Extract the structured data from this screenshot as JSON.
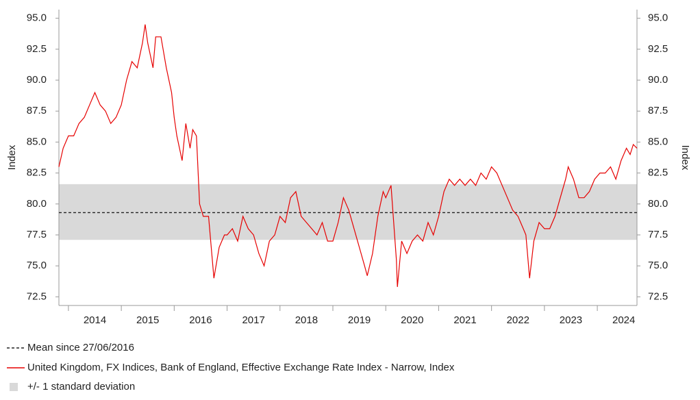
{
  "chart_data": {
    "type": "line",
    "y_label": "Index",
    "y2_label": "Index",
    "x": [
      2013.82,
      2013.9,
      2014.0,
      2014.1,
      2014.2,
      2014.3,
      2014.4,
      2014.5,
      2014.6,
      2014.7,
      2014.8,
      2014.9,
      2015.0,
      2015.1,
      2015.2,
      2015.3,
      2015.4,
      2015.45,
      2015.5,
      2015.6,
      2015.65,
      2015.75,
      2015.85,
      2015.95,
      2016.0,
      2016.05,
      2016.15,
      2016.22,
      2016.3,
      2016.35,
      2016.42,
      2016.48,
      2016.55,
      2016.65,
      2016.75,
      2016.85,
      2016.95,
      2017.0,
      2017.1,
      2017.2,
      2017.3,
      2017.4,
      2017.5,
      2017.6,
      2017.7,
      2017.8,
      2017.9,
      2018.0,
      2018.1,
      2018.2,
      2018.3,
      2018.4,
      2018.5,
      2018.6,
      2018.7,
      2018.8,
      2018.9,
      2019.0,
      2019.1,
      2019.2,
      2019.3,
      2019.4,
      2019.5,
      2019.6,
      2019.65,
      2019.75,
      2019.85,
      2019.95,
      2020.0,
      2020.1,
      2020.2,
      2020.22,
      2020.3,
      2020.4,
      2020.5,
      2020.6,
      2020.7,
      2020.8,
      2020.9,
      2021.0,
      2021.1,
      2021.2,
      2021.3,
      2021.4,
      2021.5,
      2021.6,
      2021.7,
      2021.8,
      2021.9,
      2022.0,
      2022.1,
      2022.2,
      2022.3,
      2022.4,
      2022.5,
      2022.6,
      2022.65,
      2022.72,
      2022.8,
      2022.9,
      2023.0,
      2023.1,
      2023.2,
      2023.3,
      2023.4,
      2023.45,
      2023.55,
      2023.65,
      2023.75,
      2023.85,
      2023.95,
      2024.05,
      2024.15,
      2024.25,
      2024.35,
      2024.45,
      2024.55,
      2024.62,
      2024.68,
      2024.75
    ],
    "series": [
      {
        "name": "United Kingdom, FX Indices, Bank of England, Effective Exchange Rate Index - Narrow, Index",
        "color": "#e60000",
        "values": [
          83.0,
          84.5,
          85.5,
          85.5,
          86.5,
          87.0,
          88.0,
          89.0,
          88.0,
          87.5,
          86.5,
          87.0,
          88.0,
          90.0,
          91.5,
          91.0,
          93.0,
          94.5,
          93.0,
          91.0,
          93.5,
          93.5,
          91.0,
          89.0,
          87.0,
          85.5,
          83.5,
          86.5,
          84.5,
          86.0,
          85.5,
          80.0,
          79.0,
          79.0,
          74.0,
          76.5,
          77.5,
          77.5,
          78.0,
          77.0,
          79.0,
          78.0,
          77.5,
          76.0,
          75.0,
          77.0,
          77.5,
          79.0,
          78.5,
          80.5,
          81.0,
          79.0,
          78.5,
          78.0,
          77.5,
          78.5,
          77.0,
          77.0,
          78.5,
          80.5,
          79.5,
          78.0,
          76.5,
          75.0,
          74.2,
          76.0,
          79.0,
          81.0,
          80.5,
          81.5,
          75.5,
          73.3,
          77.0,
          76.0,
          77.0,
          77.5,
          77.0,
          78.5,
          77.5,
          79.0,
          81.0,
          82.0,
          81.5,
          82.0,
          81.5,
          82.0,
          81.5,
          82.5,
          82.0,
          83.0,
          82.5,
          81.5,
          80.5,
          79.5,
          79.0,
          78.0,
          77.5,
          74.0,
          77.0,
          78.5,
          78.0,
          78.0,
          79.0,
          80.5,
          82.0,
          83.0,
          82.0,
          80.5,
          80.5,
          81.0,
          82.0,
          82.5,
          82.5,
          83.0,
          82.0,
          83.5,
          84.5,
          84.0,
          84.8,
          84.5
        ]
      }
    ],
    "mean": {
      "name": "Mean since 27/06/2016",
      "value": 79.3,
      "color": "#222222"
    },
    "band": {
      "name": "+/- 1 standard deviation",
      "low": 77.1,
      "high": 81.6,
      "color": "#d9d9d9"
    },
    "xlim": [
      2013.82,
      2024.75
    ],
    "xticks": [
      2014,
      2015,
      2016,
      2017,
      2018,
      2019,
      2020,
      2021,
      2022,
      2023,
      2024
    ],
    "ylim": [
      71.8,
      95.7
    ],
    "yticks": [
      {
        "value": 72.5,
        "label": "72.5"
      },
      {
        "value": 75,
        "label": "75.0"
      },
      {
        "value": 77.5,
        "label": "77.5"
      },
      {
        "value": 80,
        "label": "80.0"
      },
      {
        "value": 82.5,
        "label": "82.5"
      },
      {
        "value": 85,
        "label": "85.0"
      },
      {
        "value": 87.5,
        "label": "87.5"
      },
      {
        "value": 90,
        "label": "90.0"
      },
      {
        "value": 92.5,
        "label": "92.5"
      },
      {
        "value": 95,
        "label": "95.0"
      }
    ],
    "y2lim": [
      71.8,
      95.7
    ],
    "y2ticks": [
      {
        "value": 72.5,
        "label": "72.5"
      },
      {
        "value": 75,
        "label": "75.0"
      },
      {
        "value": 77.5,
        "label": "77.5"
      },
      {
        "value": 80,
        "label": "80.0"
      },
      {
        "value": 82.5,
        "label": "82.5"
      },
      {
        "value": 85,
        "label": "85.0"
      },
      {
        "value": 87.5,
        "label": "87.5"
      },
      {
        "value": 90,
        "label": "90.0"
      },
      {
        "value": 92.5,
        "label": "92.5"
      },
      {
        "value": 95,
        "label": "95.0"
      }
    ]
  }
}
